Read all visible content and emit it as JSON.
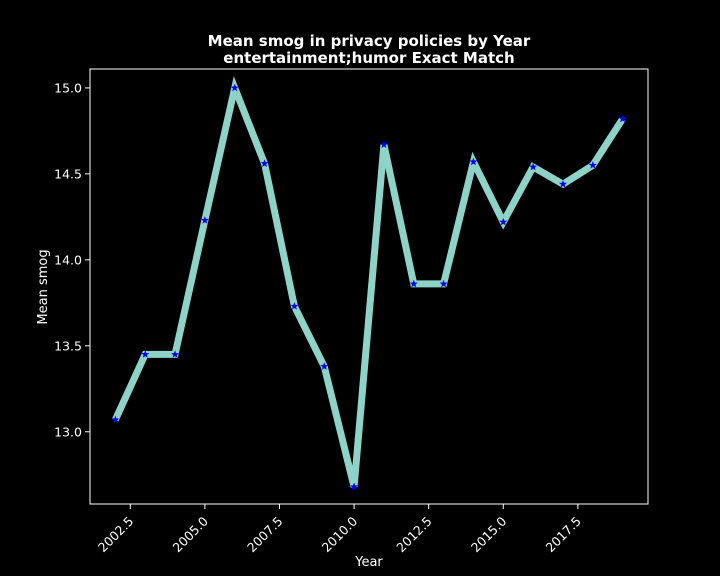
{
  "chart_data": {
    "type": "line",
    "title": "Mean smog in privacy policies by Year",
    "subtitle": "entertainment;humor Exact Match",
    "xlabel": "Year",
    "ylabel": "Mean smog",
    "xlim": [
      2001.15,
      2019.85
    ],
    "ylim": [
      12.58,
      15.11
    ],
    "xticks": [
      2002.5,
      2005.0,
      2007.5,
      2010.0,
      2012.5,
      2015.0,
      2017.5
    ],
    "xtick_labels": [
      "2002.5",
      "2005.0",
      "2007.5",
      "2010.0",
      "2012.5",
      "2015.0",
      "2017.5"
    ],
    "yticks": [
      13.0,
      13.5,
      14.0,
      14.5,
      15.0
    ],
    "ytick_labels": [
      "13.0",
      "13.5",
      "14.0",
      "14.5",
      "15.0"
    ],
    "grid": false,
    "series": [
      {
        "x": [
          2002,
          2003,
          2004,
          2005,
          2006,
          2007,
          2008,
          2009,
          2010,
          2011,
          2012,
          2013,
          2014,
          2015,
          2016,
          2017,
          2018,
          2019
        ],
        "values": [
          13.07,
          13.45,
          13.45,
          14.23,
          15.0,
          14.56,
          13.73,
          13.38,
          12.68,
          14.67,
          13.86,
          13.86,
          14.57,
          14.22,
          14.54,
          14.44,
          14.55,
          14.82
        ],
        "line_color": "#8dd3c7",
        "marker_color": "#0000ff",
        "marker": "star"
      }
    ]
  }
}
